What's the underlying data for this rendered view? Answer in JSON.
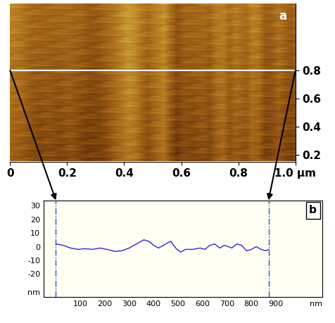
{
  "chart_data": [
    {
      "type": "image",
      "panel_label": "a",
      "xlim": [
        0,
        1.0
      ],
      "xticks": [
        0,
        0.2,
        0.4,
        0.6,
        0.8,
        {
          "value": 1.0,
          "label": "1.0 µm"
        }
      ],
      "ylim": [
        0.15,
        1.28
      ],
      "yticks": [
        0.2,
        0.4,
        0.6,
        0.8
      ],
      "profile_line_y": 0.8
    },
    {
      "type": "line",
      "panel_label": "b",
      "x": [
        0,
        30,
        60,
        90,
        120,
        150,
        180,
        210,
        240,
        270,
        300,
        330,
        360,
        380,
        400,
        420,
        440,
        470,
        490,
        510,
        530,
        560,
        590,
        610,
        630,
        650,
        670,
        690,
        720,
        740,
        760,
        780,
        800,
        820,
        840,
        860,
        870
      ],
      "values": [
        2,
        1,
        -1,
        -2,
        -1.5,
        -2,
        -1,
        -2,
        -3.5,
        -3,
        -1,
        2,
        5,
        4,
        1,
        -1,
        1,
        4,
        -1,
        -4,
        -2,
        -2,
        -1,
        -2,
        1,
        2,
        -1,
        1,
        -1,
        2,
        1,
        -3,
        -2,
        0,
        -2,
        -3,
        -2
      ],
      "color": "#2a2ad8",
      "xlim": [
        -50,
        1090
      ],
      "xticks": [
        100,
        200,
        300,
        400,
        500,
        600,
        700,
        800,
        900,
        {
          "value": 1065,
          "label": "nm"
        }
      ],
      "ylim": [
        -37,
        34
      ],
      "yticks": [
        {
          "value": -33,
          "label": "nm"
        },
        -20,
        -10,
        0,
        10,
        20,
        30
      ],
      "guides": [
        0,
        870
      ]
    }
  ]
}
